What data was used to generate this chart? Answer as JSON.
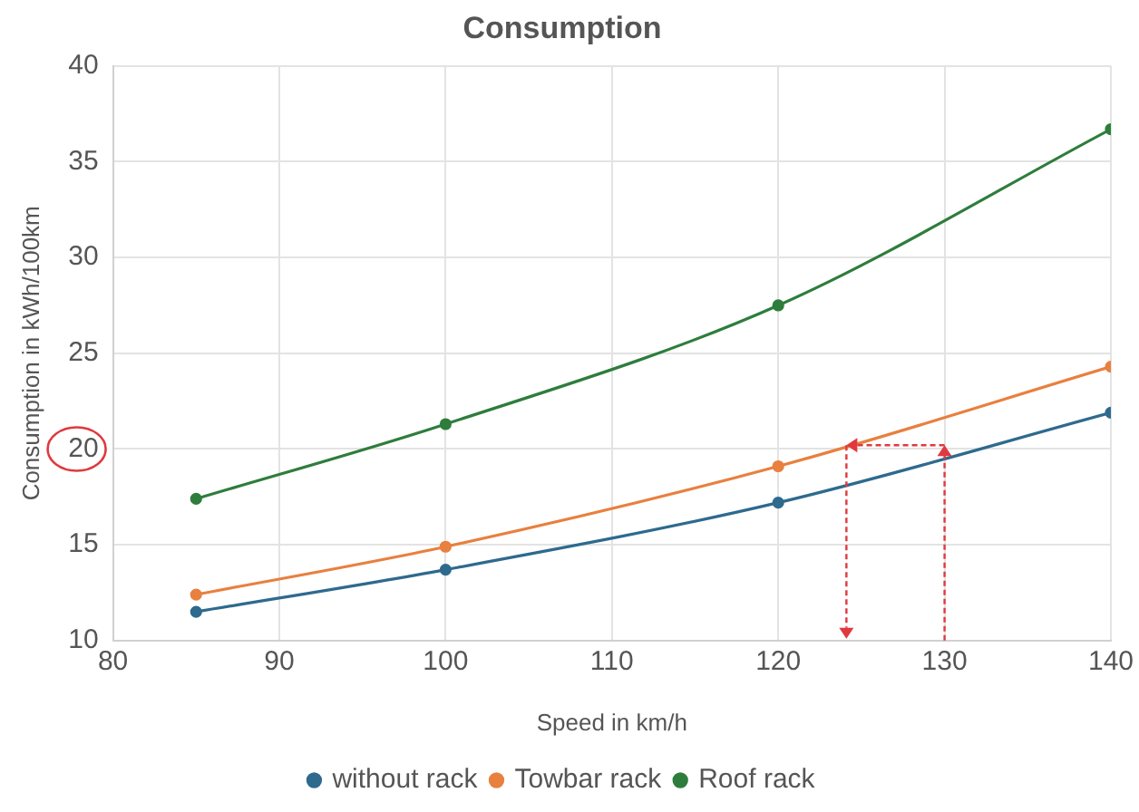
{
  "chart_data": {
    "type": "line",
    "title": "Consumption",
    "xlabel": "Speed in km/h",
    "ylabel": "Consumption in kWh/100km",
    "x": [
      85,
      100,
      120,
      140
    ],
    "series": [
      {
        "name": "without rack",
        "color": "#2e6a8e",
        "values": [
          11.5,
          13.7,
          17.2,
          21.9
        ]
      },
      {
        "name": "Towbar rack",
        "color": "#e8803f",
        "values": [
          12.4,
          14.9,
          19.1,
          24.3
        ]
      },
      {
        "name": "Roof rack",
        "color": "#2e7d3c",
        "values": [
          17.4,
          21.3,
          27.5,
          36.7
        ]
      }
    ],
    "xlim": [
      80,
      140
    ],
    "xticks": [
      80,
      90,
      100,
      110,
      120,
      130,
      140
    ],
    "ylim": [
      10,
      40
    ],
    "yticks": [
      10,
      15,
      20,
      25,
      30,
      35,
      40
    ],
    "grid": true,
    "legend": "bottom",
    "marker": "circle",
    "line_style": "solid"
  }
}
